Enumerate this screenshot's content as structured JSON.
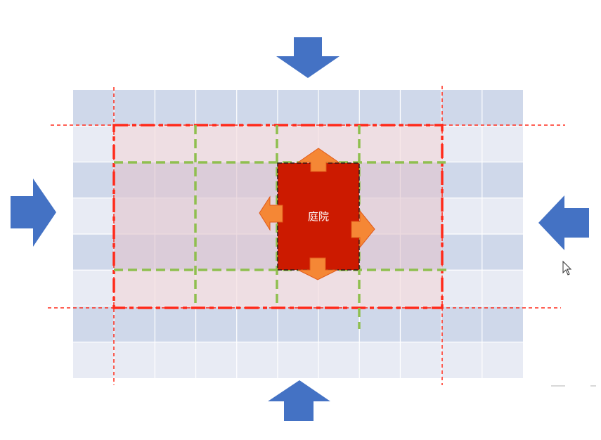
{
  "diagram": {
    "courtyard": {
      "label": "庭院",
      "color": "#cc1a00"
    },
    "grid": {
      "rows": 8,
      "columns": 11,
      "row_colors": [
        "#cfd8ea",
        "#e8ebf4"
      ]
    },
    "zones": {
      "outer_boundary_color": "#ff2a1a",
      "inner_boundary_color": "#8fbf4f",
      "zone_fill_color": "#f3d3d6"
    },
    "arrows": {
      "outer_color": "#4472c4",
      "outer_directions": [
        "down",
        "right",
        "left",
        "up"
      ],
      "inner_color": "#f58735",
      "inner_directions": [
        "up",
        "down",
        "left",
        "right"
      ]
    },
    "icons": [
      "mouse-cursor-icon"
    ]
  }
}
